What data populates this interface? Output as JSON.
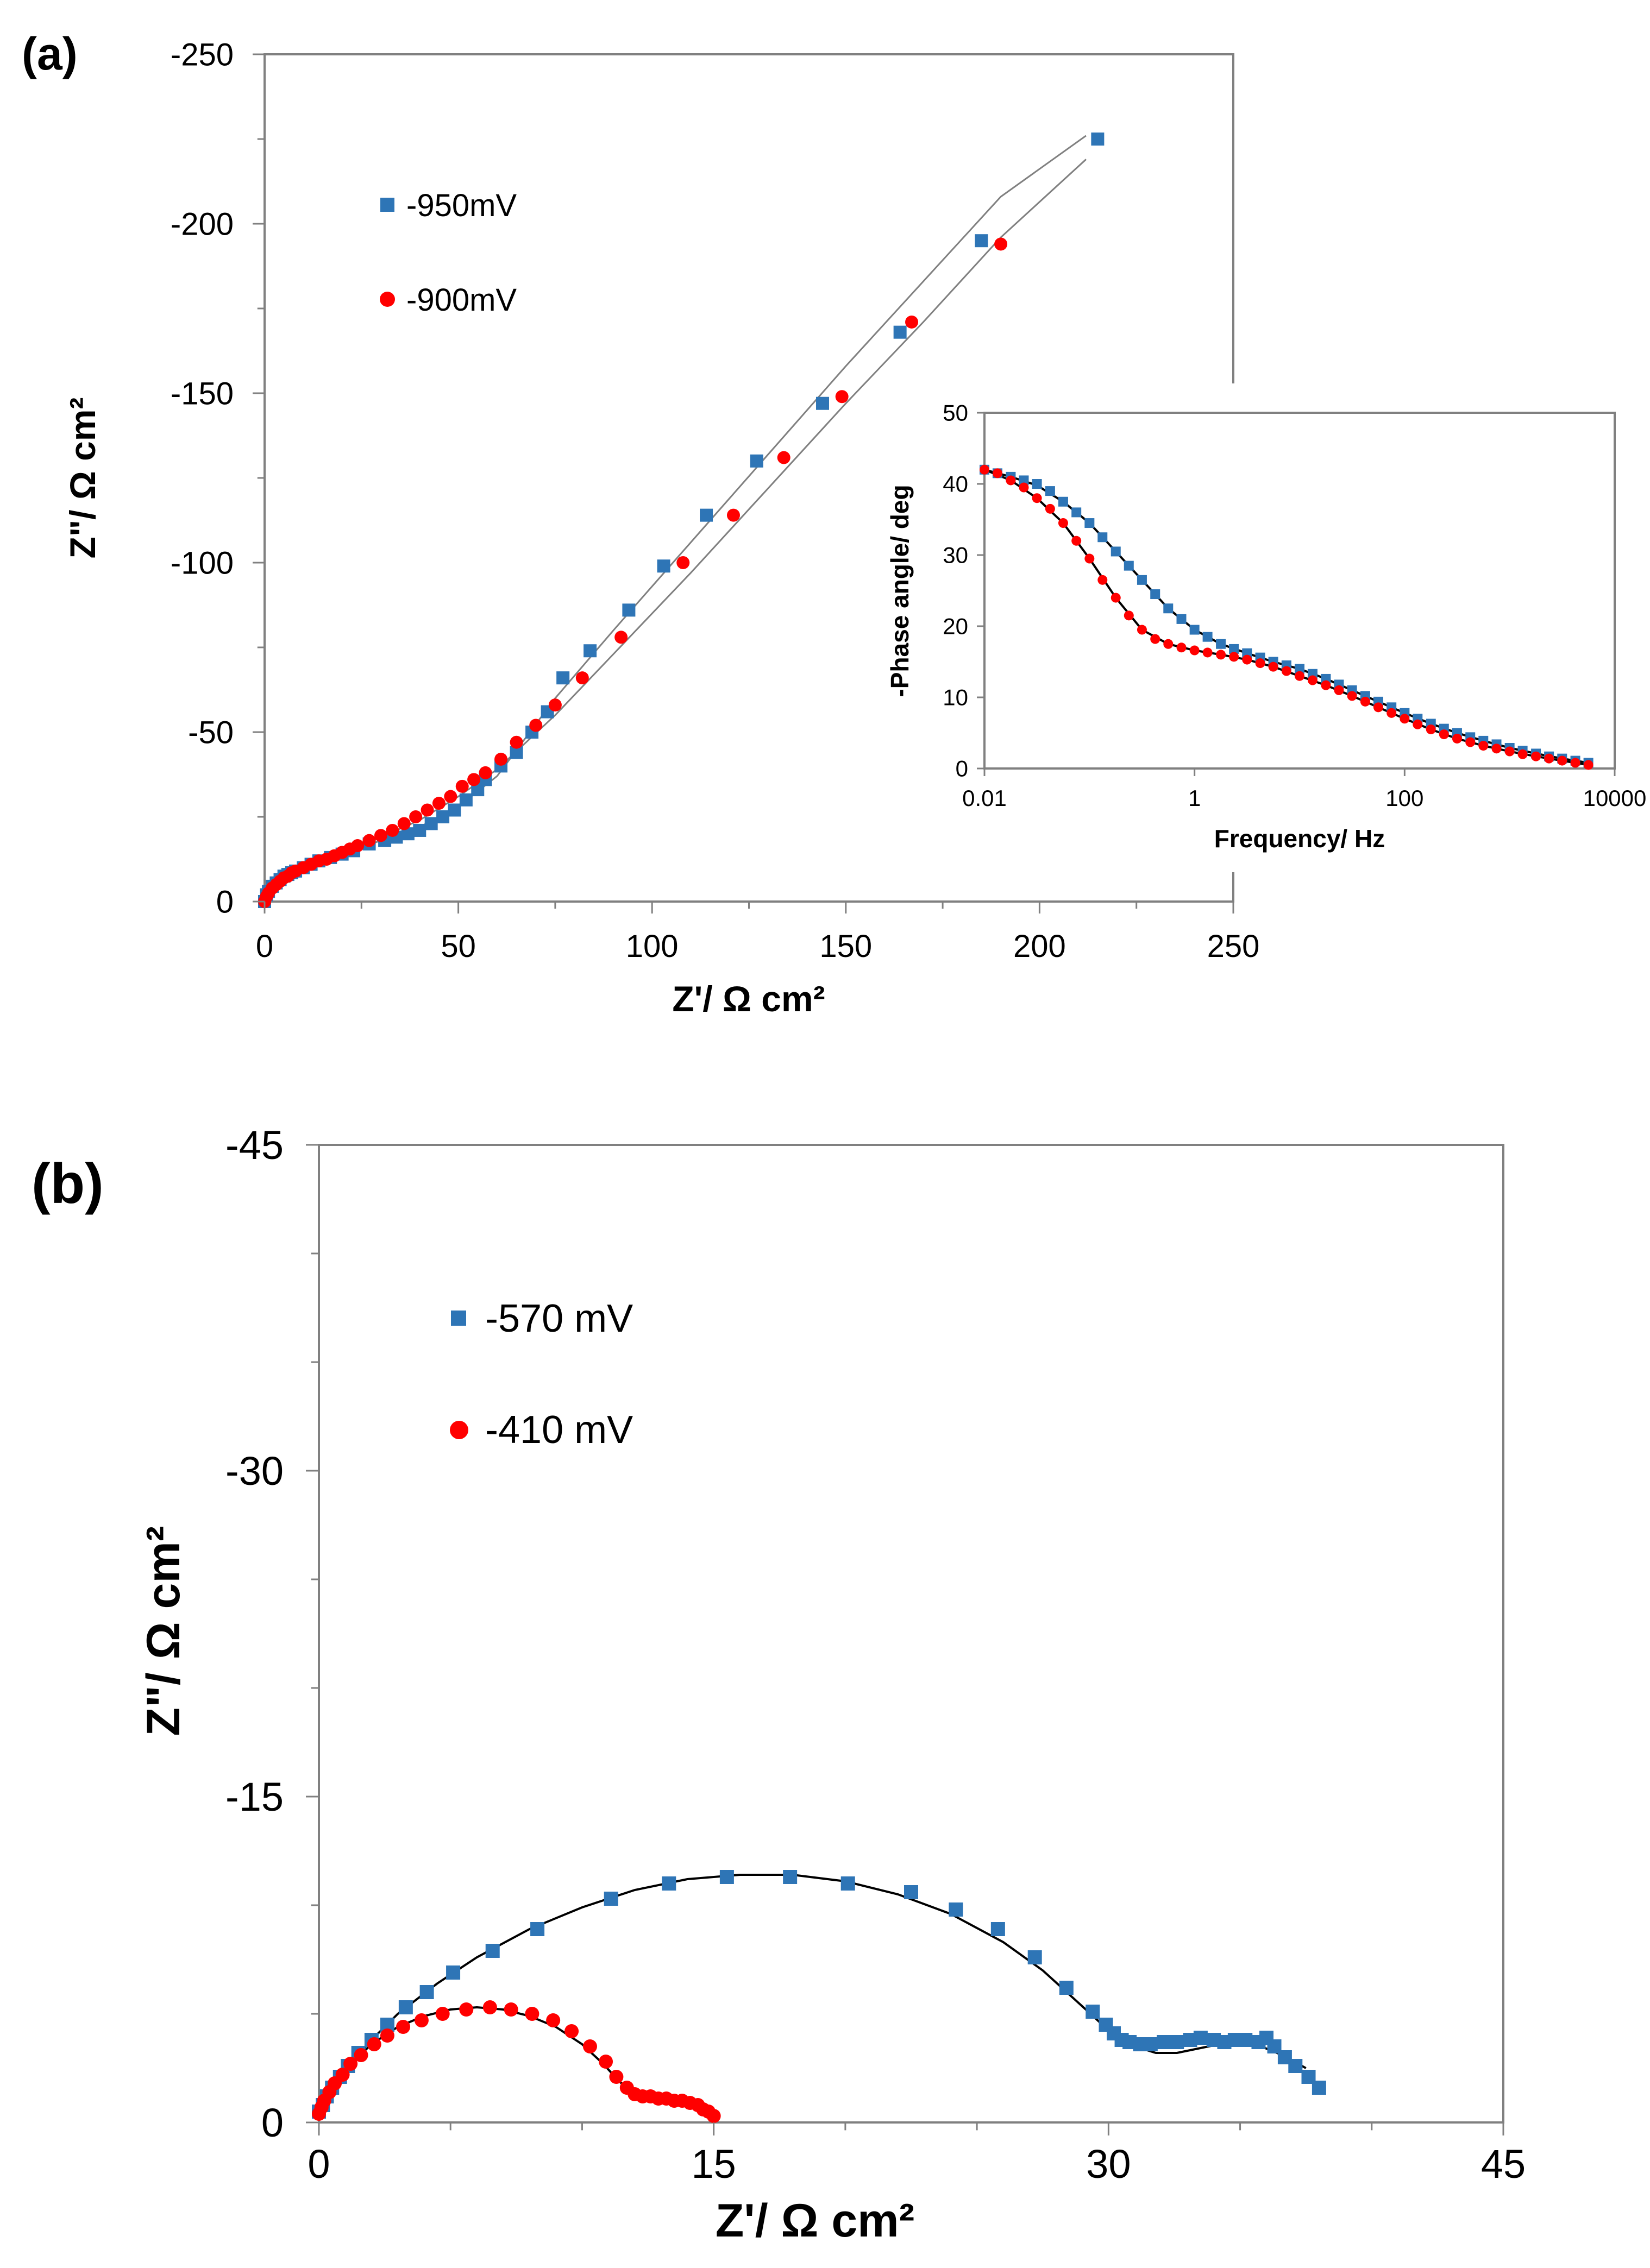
{
  "colors": {
    "blue": "#2E75B6",
    "red": "#FF0000",
    "axis": "#808080",
    "fit": "#000000"
  },
  "chart_data": [
    {
      "id": "a-main",
      "panel_label": "(a)",
      "type": "scatter",
      "xlabel": "Z'/ Ω cm²",
      "ylabel": "Z\"/ Ω cm²",
      "xlim": [
        0,
        250
      ],
      "ylim": [
        0,
        -250
      ],
      "xticks": [
        "0",
        "50",
        "100",
        "150",
        "200",
        "250"
      ],
      "yticks": [
        "0",
        "-50",
        "-100",
        "-150",
        "-200",
        "-250"
      ],
      "legend": [
        {
          "label": "-950mV",
          "marker": "square",
          "color": "blue"
        },
        {
          "label": "-900mV",
          "marker": "circle",
          "color": "red"
        }
      ],
      "series": [
        {
          "name": "-950mV",
          "marker": "square",
          "color": "blue",
          "x": [
            0,
            0.5,
            1,
            2,
            3,
            4,
            5,
            6,
            7,
            8,
            10,
            12,
            14,
            17,
            20,
            23,
            27,
            31,
            34,
            37,
            40,
            43,
            46,
            49,
            52,
            55,
            57,
            61,
            65,
            69,
            73,
            77,
            84,
            94,
            103,
            114,
            127,
            144,
            164,
            185,
            215
          ],
          "y": [
            0,
            -2,
            -3,
            -4.5,
            -5.5,
            -6.5,
            -7.5,
            -8,
            -8.5,
            -9,
            -10,
            -11,
            -12,
            -13,
            -14,
            -15,
            -17,
            -18,
            -19,
            -20,
            -21,
            -23,
            -25,
            -27,
            -30,
            -33,
            -36,
            -40,
            -44,
            -50,
            -56,
            -66,
            -74,
            -86,
            -99,
            -114,
            -130,
            -147,
            -168,
            -195,
            -225
          ]
        },
        {
          "name": "-900mV",
          "marker": "circle",
          "color": "red",
          "x": [
            0,
            0.5,
            1,
            2,
            3,
            4,
            5,
            6,
            7,
            8,
            10,
            12,
            14,
            16,
            18,
            20,
            22,
            24,
            27,
            30,
            33,
            36,
            39,
            42,
            45,
            48,
            51,
            54,
            57,
            61,
            65,
            70,
            75,
            82,
            92,
            108,
            121,
            134,
            149,
            167,
            190
          ],
          "y": [
            0,
            -1.5,
            -2.5,
            -4,
            -5,
            -6,
            -7,
            -7.5,
            -8.5,
            -9,
            -10,
            -11,
            -12,
            -12.5,
            -13.5,
            -14.5,
            -15.5,
            -16.5,
            -18,
            -19.5,
            -21,
            -23,
            -25,
            -27,
            -29,
            -31,
            -34,
            -36,
            -38,
            -42,
            -47,
            -52,
            -58,
            -66,
            -78,
            -100,
            -114,
            -131,
            -149,
            -171,
            -194
          ]
        },
        {
          "name": "fit-950mV",
          "type": "line",
          "color": "axis",
          "x": [
            0,
            5,
            10,
            20,
            30,
            40,
            50,
            60,
            75,
            90,
            110,
            130,
            150,
            170,
            190,
            212
          ],
          "y": [
            0,
            -8,
            -10.5,
            -14,
            -18,
            -22,
            -28,
            -37,
            -60,
            -80,
            -106,
            -132,
            -158,
            -183,
            -208,
            -226
          ]
        },
        {
          "name": "fit-900mV",
          "type": "line",
          "color": "axis",
          "x": [
            0,
            5,
            10,
            20,
            30,
            40,
            50,
            60,
            75,
            90,
            110,
            130,
            150,
            170,
            190,
            212
          ],
          "y": [
            0,
            -7,
            -10,
            -14,
            -19,
            -24,
            -31,
            -39,
            -55,
            -73,
            -97,
            -122,
            -147,
            -171,
            -196,
            -219
          ]
        }
      ]
    },
    {
      "id": "a-inset",
      "type": "scatter",
      "xscale": "log",
      "xlabel": "Frequency/ Hz",
      "ylabel": "-Phase angle/ deg",
      "xlim": [
        0.01,
        10000
      ],
      "ylim": [
        0,
        50
      ],
      "xticks": [
        "0.01",
        "1",
        "100",
        "10000"
      ],
      "yticks": [
        "0",
        "10",
        "20",
        "30",
        "40",
        "50"
      ],
      "series": [
        {
          "name": "-950mV",
          "marker": "square",
          "color": "blue",
          "x": [
            0.01,
            0.0133,
            0.0178,
            0.0237,
            0.0316,
            0.0422,
            0.0562,
            0.075,
            0.1,
            0.133,
            0.178,
            0.237,
            0.316,
            0.422,
            0.562,
            0.75,
            1,
            1.33,
            1.78,
            2.37,
            3.16,
            4.22,
            5.62,
            7.5,
            10,
            13.3,
            17.8,
            23.7,
            31.6,
            42.2,
            56.2,
            75,
            100,
            133,
            178,
            237,
            316,
            422,
            562,
            750,
            1000,
            1330,
            1780,
            2370,
            3160,
            4220,
            5620
          ],
          "y": [
            42,
            41.5,
            41,
            40.5,
            40,
            39,
            37.5,
            36,
            34.5,
            32.5,
            30.5,
            28.5,
            26.5,
            24.5,
            22.5,
            21,
            19.5,
            18.5,
            17.5,
            16.8,
            16.2,
            15.6,
            15,
            14.5,
            14,
            13.3,
            12.6,
            11.8,
            11,
            10.2,
            9.4,
            8.6,
            7.8,
            7,
            6.3,
            5.6,
            5,
            4.4,
            3.9,
            3.4,
            2.9,
            2.5,
            2.1,
            1.7,
            1.4,
            1.1,
            0.8
          ]
        },
        {
          "name": "-900mV",
          "marker": "circle",
          "color": "red",
          "x": [
            0.01,
            0.0133,
            0.0178,
            0.0237,
            0.0316,
            0.0422,
            0.0562,
            0.075,
            0.1,
            0.133,
            0.178,
            0.237,
            0.316,
            0.422,
            0.562,
            0.75,
            1,
            1.33,
            1.78,
            2.37,
            3.16,
            4.22,
            5.62,
            7.5,
            10,
            13.3,
            17.8,
            23.7,
            31.6,
            42.2,
            56.2,
            75,
            100,
            133,
            178,
            237,
            316,
            422,
            562,
            750,
            1000,
            1330,
            1780,
            2370,
            3160,
            4220,
            5620
          ],
          "y": [
            42,
            41.5,
            40.5,
            39.5,
            38,
            36.5,
            34.5,
            32,
            29.5,
            26.5,
            24,
            21.5,
            19.5,
            18.2,
            17.5,
            17,
            16.6,
            16.3,
            16,
            15.7,
            15.3,
            14.8,
            14.3,
            13.7,
            13,
            12.4,
            11.7,
            11,
            10.2,
            9.4,
            8.6,
            7.8,
            7,
            6.2,
            5.5,
            4.8,
            4.2,
            3.7,
            3.2,
            2.8,
            2.4,
            2,
            1.7,
            1.4,
            1.1,
            0.8,
            0.5
          ]
        },
        {
          "name": "fit-950mV",
          "type": "line",
          "color": "fit",
          "x": [
            0.01,
            0.0178,
            0.0316,
            0.0562,
            0.1,
            0.178,
            0.316,
            0.562,
            1,
            1.78,
            3.16,
            5.62,
            10,
            17.8,
            31.6,
            56.2,
            100,
            178,
            316,
            562,
            1000,
            1780,
            3160,
            5620
          ],
          "y": [
            42,
            41,
            39.8,
            37.5,
            34.5,
            30.5,
            26.5,
            22.5,
            19.5,
            17.5,
            16.2,
            15,
            14,
            12.6,
            11,
            9.4,
            7.8,
            6.3,
            5,
            3.9,
            2.9,
            2.1,
            1.4,
            0.8
          ]
        },
        {
          "name": "fit-900mV",
          "type": "line",
          "color": "fit",
          "x": [
            0.01,
            0.0178,
            0.0316,
            0.0562,
            0.1,
            0.178,
            0.316,
            0.562,
            1,
            1.78,
            3.16,
            5.62,
            10,
            17.8,
            31.6,
            56.2,
            100,
            178,
            316,
            562,
            1000,
            1780,
            3160,
            5620
          ],
          "y": [
            42,
            40.5,
            38,
            34.5,
            29.5,
            24,
            19.5,
            17.5,
            16.6,
            16,
            15.3,
            14.3,
            13,
            11.7,
            10.2,
            8.6,
            7,
            5.5,
            4.2,
            3.2,
            2.4,
            1.7,
            1.1,
            0.5
          ]
        }
      ]
    },
    {
      "id": "b-main",
      "panel_label": "(b)",
      "type": "scatter",
      "xlabel": "Z'/ Ω cm²",
      "ylabel": "Z\"/ Ω cm²",
      "xlim": [
        0,
        45
      ],
      "ylim": [
        0,
        -45
      ],
      "xticks": [
        "0",
        "15",
        "30",
        "45"
      ],
      "yticks": [
        "0",
        "-15",
        "-30",
        "-45"
      ],
      "legend": [
        {
          "label": "-570 mV",
          "marker": "square",
          "color": "blue"
        },
        {
          "label": "-410 mV",
          "marker": "circle",
          "color": "red"
        }
      ],
      "series": [
        {
          "name": "-570 mV",
          "marker": "square",
          "color": "blue",
          "x": [
            0,
            0.15,
            0.3,
            0.5,
            0.8,
            1.1,
            1.5,
            2,
            2.6,
            3.3,
            4.1,
            5.1,
            6.6,
            8.3,
            11.1,
            13.3,
            15.5,
            17.9,
            20.1,
            22.5,
            24.2,
            25.8,
            27.2,
            28.4,
            29.4,
            29.9,
            30.2,
            30.5,
            30.8,
            31.2,
            31.6,
            32.1,
            32.6,
            33.1,
            33.5,
            34.0,
            34.4,
            34.8,
            35.2,
            35.7,
            36.0,
            36.3,
            36.7,
            37.1,
            37.6,
            38.0
          ],
          "y": [
            -0.5,
            -0.8,
            -1.2,
            -1.6,
            -2.1,
            -2.6,
            -3.2,
            -3.8,
            -4.5,
            -5.3,
            -6.0,
            -6.9,
            -7.9,
            -8.9,
            -10.3,
            -11.0,
            -11.3,
            -11.3,
            -11.0,
            -10.6,
            -9.8,
            -8.9,
            -7.6,
            -6.2,
            -5.1,
            -4.5,
            -4.1,
            -3.8,
            -3.7,
            -3.6,
            -3.6,
            -3.7,
            -3.7,
            -3.8,
            -3.9,
            -3.8,
            -3.7,
            -3.8,
            -3.8,
            -3.7,
            -3.9,
            -3.5,
            -3.0,
            -2.6,
            -2.1,
            -1.6
          ]
        },
        {
          "name": "-410 mV",
          "marker": "circle",
          "color": "red",
          "x": [
            0,
            0.1,
            0.2,
            0.4,
            0.6,
            0.9,
            1.2,
            1.6,
            2.1,
            2.6,
            3.2,
            3.9,
            4.7,
            5.6,
            6.5,
            7.3,
            8.1,
            8.9,
            9.6,
            10.3,
            10.9,
            11.3,
            11.7,
            12.0,
            12.3,
            12.6,
            12.9,
            13.2,
            13.5,
            13.8,
            14.1,
            14.4,
            14.6,
            14.8,
            15.0
          ],
          "y": [
            -0.4,
            -0.7,
            -1.0,
            -1.4,
            -1.8,
            -2.2,
            -2.7,
            -3.1,
            -3.6,
            -4.0,
            -4.4,
            -4.7,
            -5.0,
            -5.2,
            -5.3,
            -5.2,
            -5.0,
            -4.7,
            -4.2,
            -3.5,
            -2.8,
            -2.1,
            -1.6,
            -1.3,
            -1.2,
            -1.2,
            -1.1,
            -1.1,
            -1.0,
            -1.0,
            -0.9,
            -0.8,
            -0.6,
            -0.5,
            -0.3
          ]
        },
        {
          "name": "fit-570 mV",
          "type": "line",
          "color": "fit",
          "x": [
            0,
            0.5,
            1,
            2,
            3,
            4.5,
            6,
            8,
            10,
            12,
            14,
            16,
            18,
            20,
            22,
            24,
            26,
            27.5,
            28.5,
            29.5,
            30.2,
            31,
            31.8,
            32.6,
            33.4,
            34.2,
            35,
            35.8,
            36.6,
            37.5
          ],
          "y": [
            -0.5,
            -1.6,
            -2.5,
            -3.8,
            -5.0,
            -6.4,
            -7.6,
            -8.9,
            -9.9,
            -10.7,
            -11.2,
            -11.4,
            -11.4,
            -11.1,
            -10.5,
            -9.6,
            -8.3,
            -7.0,
            -5.9,
            -4.8,
            -4.0,
            -3.5,
            -3.2,
            -3.2,
            -3.4,
            -3.6,
            -3.7,
            -3.5,
            -3.1,
            -2.5
          ]
        },
        {
          "name": "fit-410 mV",
          "type": "line",
          "color": "fit",
          "x": [
            0,
            0.3,
            0.7,
            1.2,
            2,
            3,
            4,
            5,
            6,
            7,
            8,
            9,
            10,
            10.8,
            11.4,
            11.9,
            12.4,
            13,
            13.6,
            14.2,
            14.8
          ],
          "y": [
            -0.4,
            -1.2,
            -2.0,
            -2.7,
            -3.6,
            -4.4,
            -4.9,
            -5.2,
            -5.3,
            -5.2,
            -4.9,
            -4.4,
            -3.6,
            -2.7,
            -1.9,
            -1.4,
            -1.2,
            -1.1,
            -1.0,
            -0.8,
            -0.4
          ]
        }
      ]
    }
  ]
}
